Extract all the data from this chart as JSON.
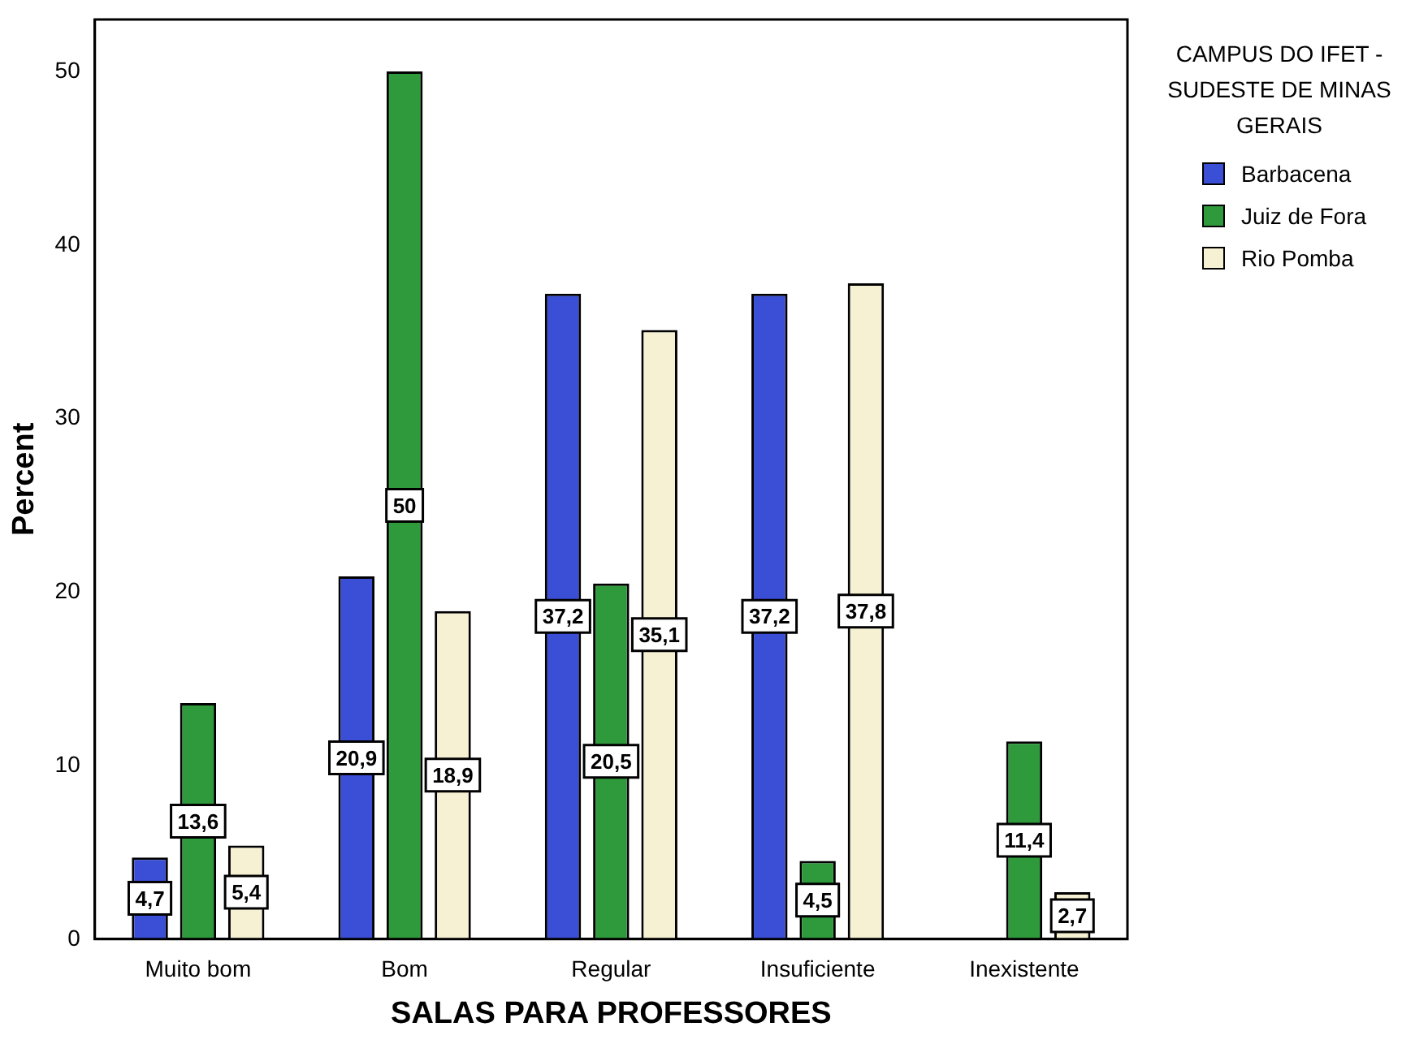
{
  "chart_data": {
    "type": "bar",
    "xlabel": "SALAS PARA PROFESSORES",
    "ylabel": "Percent",
    "legend_title": "CAMPUS DO IFET - SUDESTE DE MINAS GERAIS",
    "legend": "right",
    "categories": [
      "Muito bom",
      "Bom",
      "Regular",
      "Insuficiente",
      "Inexistente"
    ],
    "series": [
      {
        "name": "Barbacena",
        "color": "#3a4ed6",
        "values": [
          4.7,
          20.9,
          37.2,
          37.2,
          null
        ],
        "value_labels": [
          "4,7",
          "20,9",
          "37,2",
          "37,2",
          null
        ]
      },
      {
        "name": "Juiz de Fora",
        "color": "#2f9a3c",
        "values": [
          13.6,
          50,
          20.5,
          4.5,
          11.4
        ],
        "value_labels": [
          "13,6",
          "50",
          "20,5",
          "4,5",
          "11,4"
        ]
      },
      {
        "name": "Rio Pomba",
        "color": "#f6f1d2",
        "values": [
          5.4,
          18.9,
          35.1,
          37.8,
          2.7
        ],
        "value_labels": [
          "5,4",
          "18,9",
          "35,1",
          "37,8",
          "2,7"
        ]
      }
    ],
    "ylim": [
      0,
      53
    ],
    "yticks": [
      0,
      10,
      20,
      30,
      40,
      50
    ],
    "grid": false
  }
}
